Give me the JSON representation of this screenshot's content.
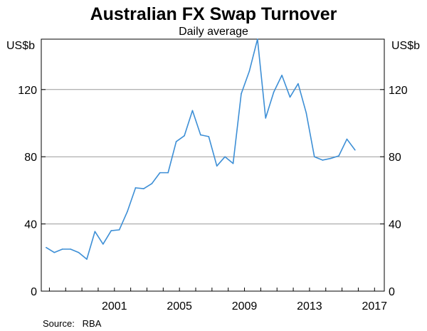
{
  "chart_data": {
    "type": "line",
    "title": "Australian FX Swap Turnover",
    "subtitle": "Daily average",
    "ylabel_left": "US$b",
    "ylabel_right": "US$b",
    "source": "Source:   RBA",
    "xlim": [
      1996.5,
      2017.6
    ],
    "ylim": [
      0,
      150
    ],
    "yticks": [
      0,
      40,
      80,
      120
    ],
    "xticks": [
      2001,
      2005,
      2009,
      2013,
      2017
    ],
    "grid": true,
    "series": [
      {
        "color": "#3d8fd6",
        "points": [
          [
            1996.8,
            26
          ],
          [
            1997.3,
            23
          ],
          [
            1997.8,
            25
          ],
          [
            1998.3,
            25
          ],
          [
            1998.8,
            23
          ],
          [
            1999.3,
            19
          ],
          [
            1999.8,
            35.5
          ],
          [
            2000.3,
            28
          ],
          [
            2000.8,
            36
          ],
          [
            2001.3,
            36.5
          ],
          [
            2001.8,
            47.5
          ],
          [
            2002.3,
            61.5
          ],
          [
            2002.8,
            61
          ],
          [
            2003.3,
            64
          ],
          [
            2003.8,
            70.5
          ],
          [
            2004.3,
            70.5
          ],
          [
            2004.8,
            89
          ],
          [
            2005.3,
            92.5
          ],
          [
            2005.8,
            107.5
          ],
          [
            2006.3,
            93
          ],
          [
            2006.8,
            92
          ],
          [
            2007.3,
            74.5
          ],
          [
            2007.8,
            80
          ],
          [
            2008.3,
            76
          ],
          [
            2008.8,
            117.5
          ],
          [
            2009.3,
            131
          ],
          [
            2009.8,
            150
          ],
          [
            2010.3,
            103
          ],
          [
            2010.8,
            118.5
          ],
          [
            2011.3,
            128.5
          ],
          [
            2011.8,
            115.5
          ],
          [
            2012.3,
            123.5
          ],
          [
            2012.8,
            106
          ],
          [
            2013.3,
            80
          ],
          [
            2013.8,
            78
          ],
          [
            2014.3,
            79
          ],
          [
            2014.8,
            80.5
          ],
          [
            2015.3,
            90.5
          ],
          [
            2015.8,
            84
          ]
        ]
      }
    ]
  }
}
